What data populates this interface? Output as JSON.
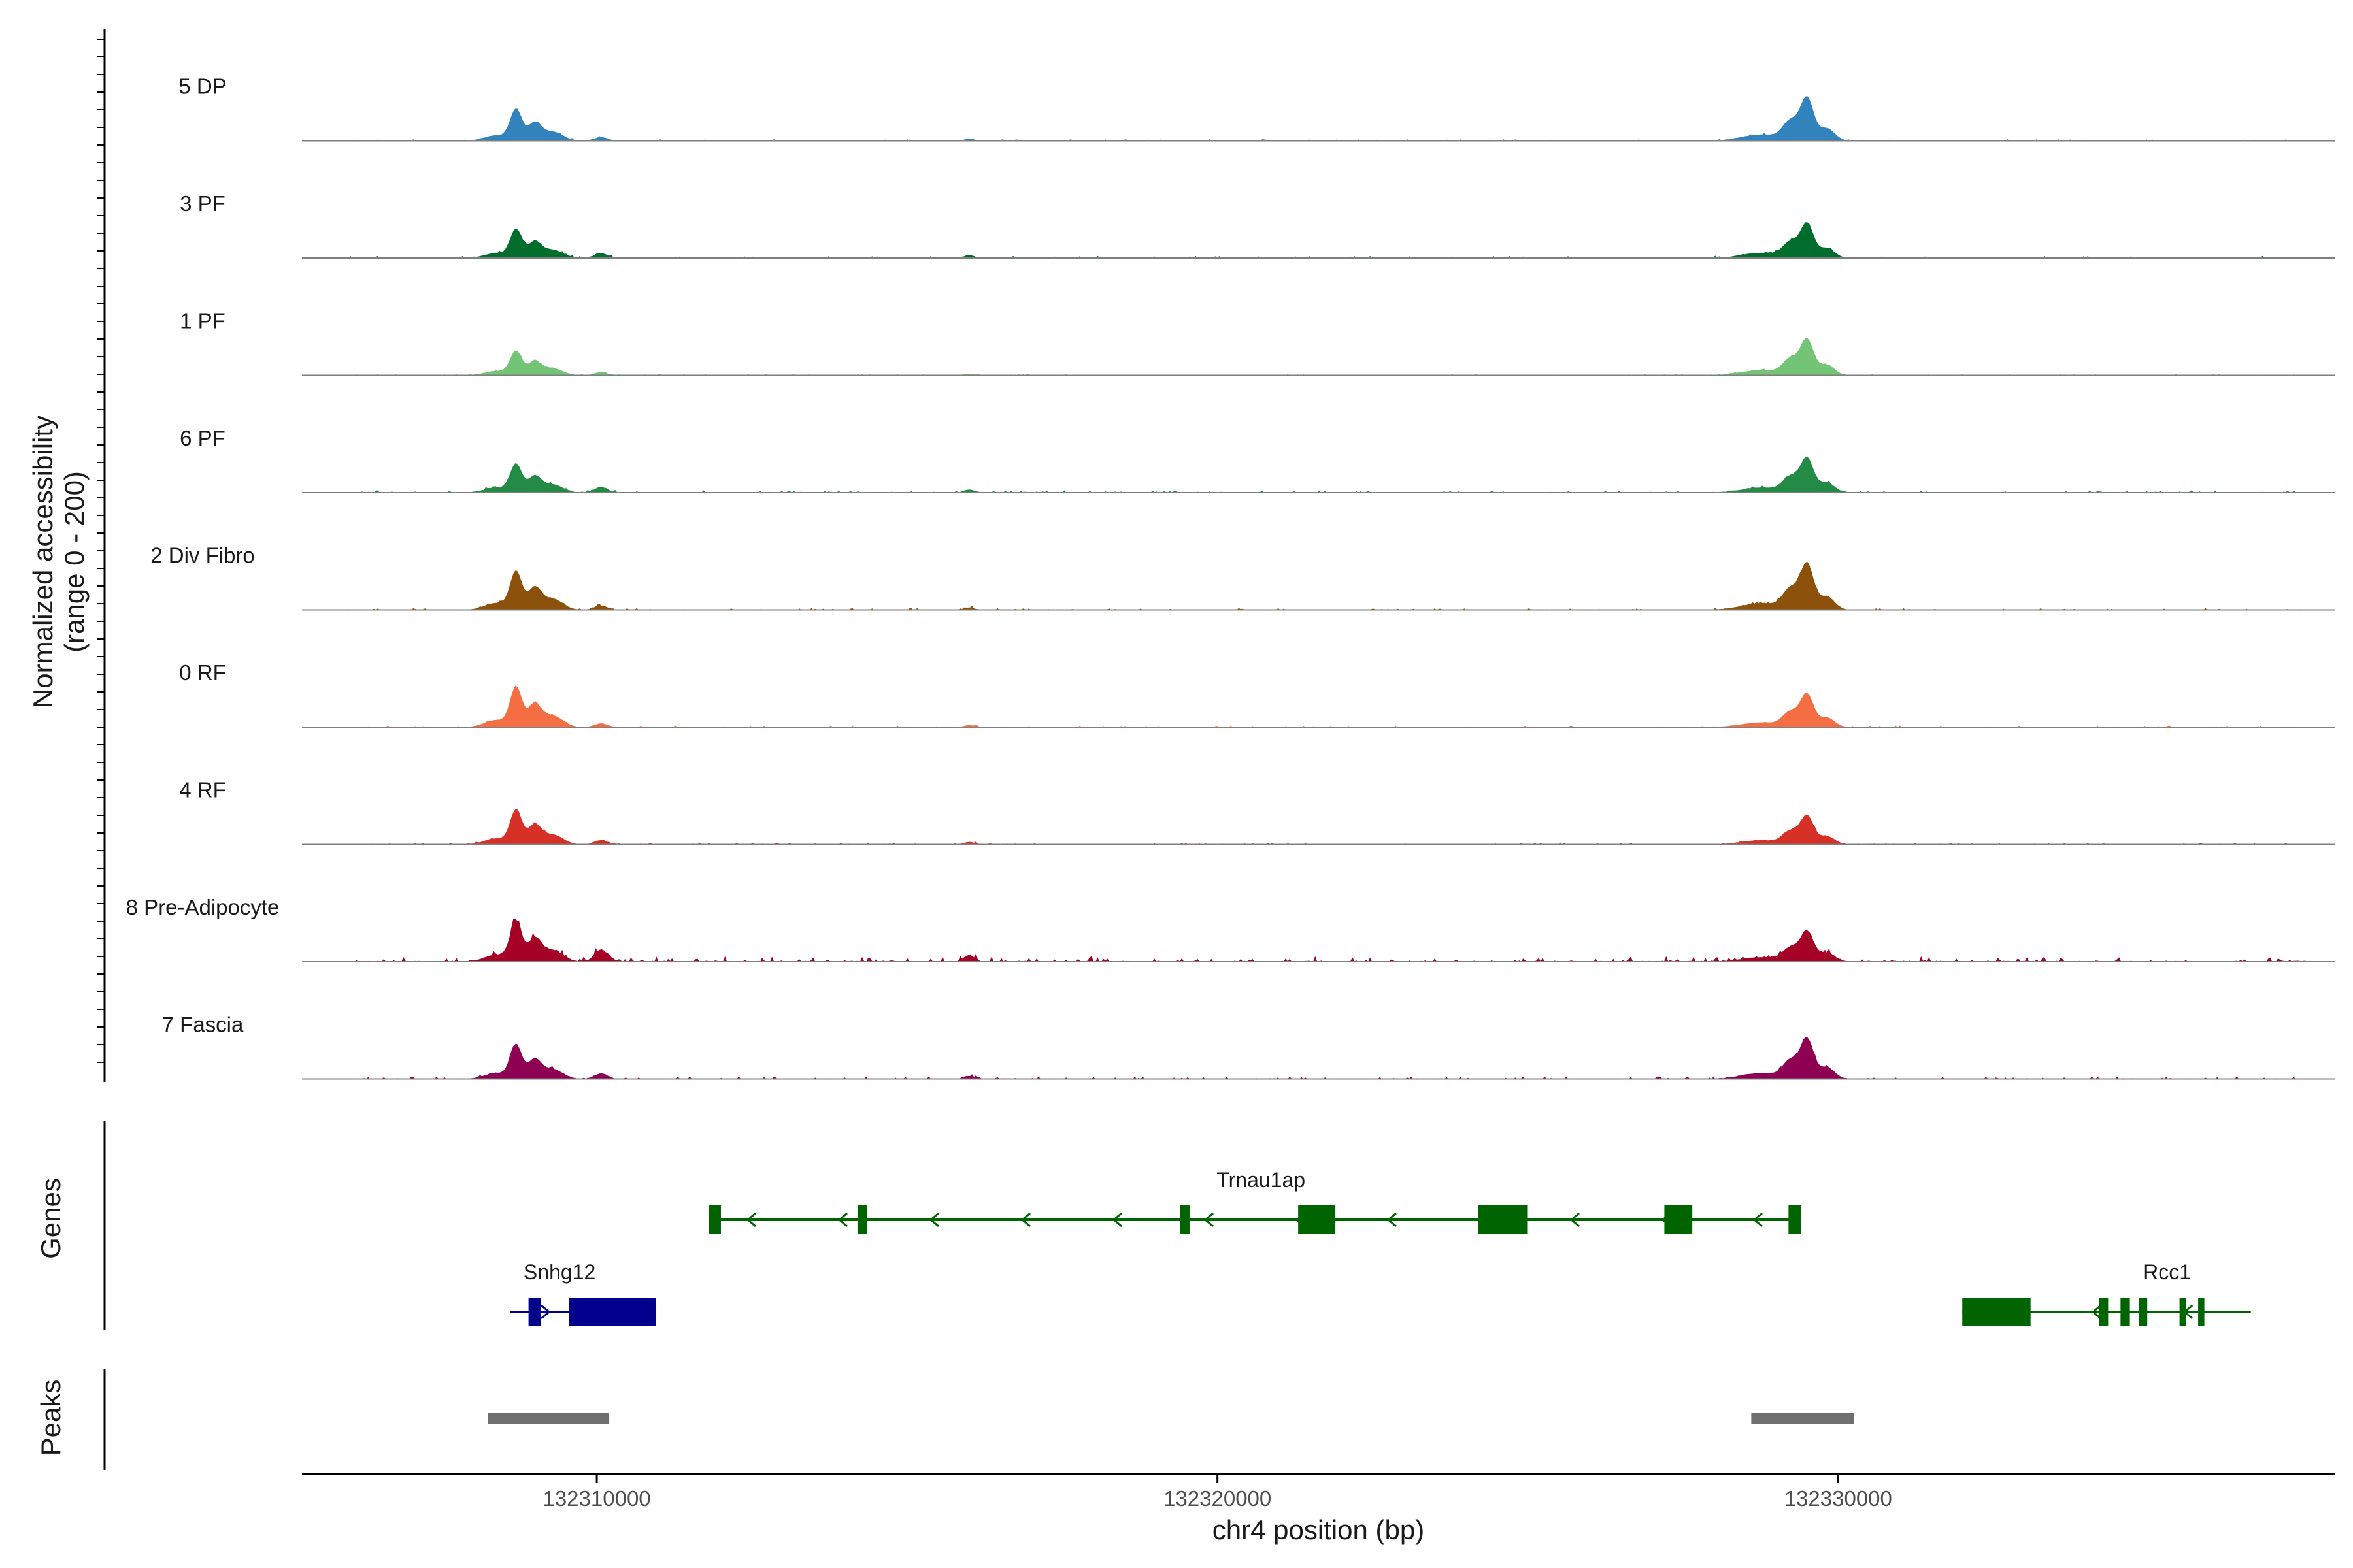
{
  "chart_data": {
    "type": "area",
    "title": "",
    "ylabel": "Normalized accessibility",
    "ylabel_range": "(range 0 - 200)",
    "xlabel": "chr4 position (bp)",
    "xlim": [
      132305250,
      132338000
    ],
    "ylim": [
      0,
      200
    ],
    "x_ticks": [
      132310000,
      132320000,
      132330000
    ],
    "x_tick_labels": [
      "132310000",
      "132320000",
      "132330000"
    ],
    "peak_centers": [
      132308700,
      132329500
    ],
    "tracks": [
      {
        "name": "5 DP",
        "color": "#3182bd",
        "peak1": 110,
        "peak2": 150,
        "noise": 6
      },
      {
        "name": "3 PF",
        "color": "#006d2c",
        "peak1": 100,
        "peak2": 120,
        "noise": 8
      },
      {
        "name": "1 PF",
        "color": "#74c476",
        "peak1": 85,
        "peak2": 125,
        "noise": 5
      },
      {
        "name": "6 PF",
        "color": "#238b45",
        "peak1": 100,
        "peak2": 120,
        "noise": 9
      },
      {
        "name": "2 Div Fibro",
        "color": "#8c510a",
        "peak1": 135,
        "peak2": 160,
        "noise": 7
      },
      {
        "name": "0 RF",
        "color": "#f46d43",
        "peak1": 140,
        "peak2": 115,
        "noise": 6
      },
      {
        "name": "4 RF",
        "color": "#d73027",
        "peak1": 120,
        "peak2": 100,
        "noise": 7
      },
      {
        "name": "8 Pre-Adipocyte",
        "color": "#a50026",
        "peak1": 140,
        "peak2": 105,
        "noise": 20
      },
      {
        "name": "7 Fascia",
        "color": "#8e0152",
        "peak1": 120,
        "peak2": 140,
        "noise": 9
      }
    ],
    "genes_label": "Genes",
    "peaks_label": "Peaks",
    "genes": [
      {
        "name": "Trnau1ap",
        "strand": "-",
        "start": 132311800,
        "end": 132329400,
        "color": "#006400",
        "row": 1,
        "exons": [
          [
            132311800,
            132312000
          ],
          [
            132314200,
            132314350
          ],
          [
            132319400,
            132319550
          ],
          [
            132321300,
            132321900
          ],
          [
            132324200,
            132325000
          ],
          [
            132327200,
            132327650
          ],
          [
            132329200,
            132329400
          ]
        ]
      },
      {
        "name": "Snhg12",
        "strand": "+",
        "start": 132308600,
        "end": 132310950,
        "color": "#00008b",
        "row": 2,
        "exons": [
          [
            132308900,
            132309100
          ],
          [
            132309550,
            132310950
          ]
        ]
      },
      {
        "name": "Rcc1",
        "strand": "-",
        "start": 132332000,
        "end": 132336650,
        "color": "#006400",
        "row": 2,
        "exons": [
          [
            132332000,
            132333100
          ],
          [
            132334200,
            132334350
          ],
          [
            132334550,
            132334700
          ],
          [
            132334850,
            132334980
          ],
          [
            132335500,
            132335600
          ],
          [
            132335800,
            132335900
          ]
        ]
      }
    ],
    "peaks": [
      [
        132308250,
        132310200
      ],
      [
        132328600,
        132330250
      ]
    ]
  }
}
